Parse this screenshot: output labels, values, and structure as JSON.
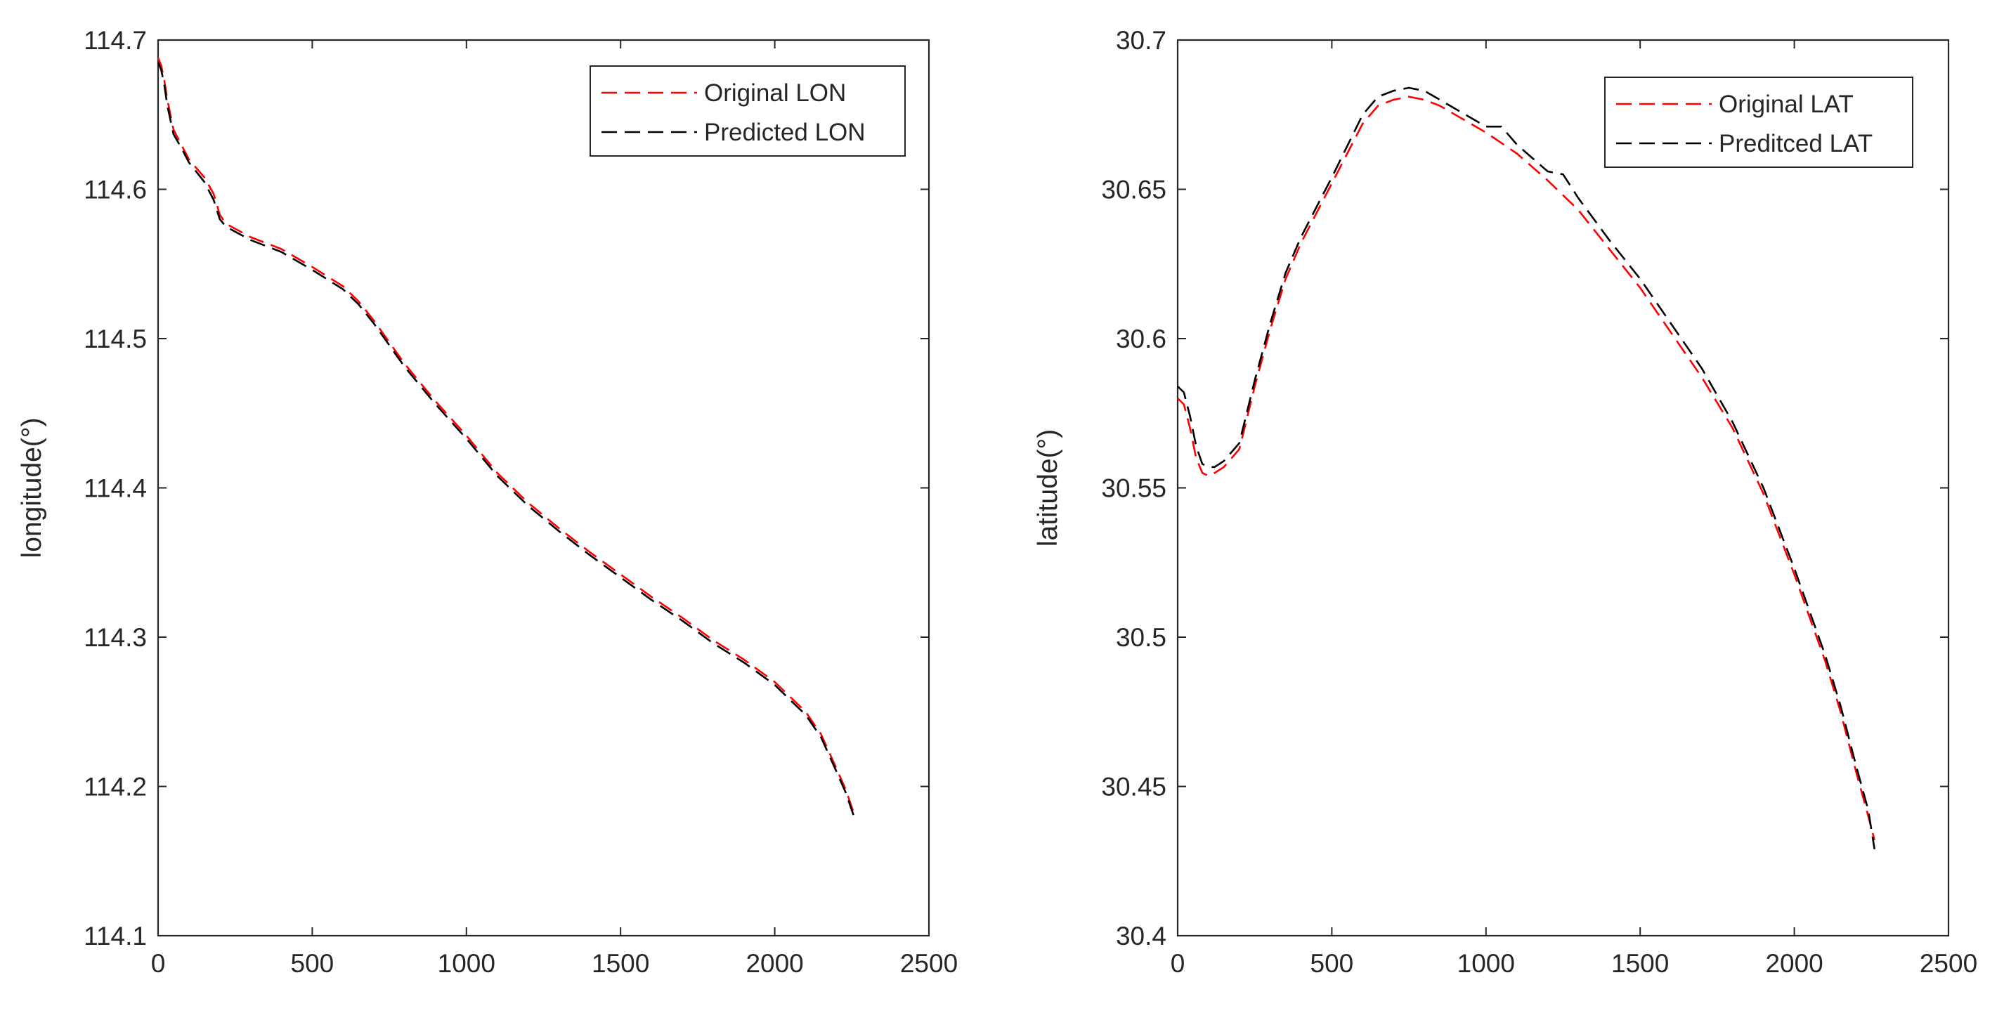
{
  "chart_data": [
    {
      "type": "line",
      "title": "",
      "xlabel": "",
      "ylabel": "longitude(°)",
      "xlim": [
        0,
        2500
      ],
      "ylim": [
        114.1,
        114.7
      ],
      "xticks": [
        0,
        500,
        1000,
        1500,
        2000,
        2500
      ],
      "yticks": [
        114.1,
        114.2,
        114.3,
        114.4,
        114.5,
        114.6,
        114.7
      ],
      "xtick_labels": [
        "0",
        "500",
        "1000",
        "1500",
        "2000",
        "2500"
      ],
      "ytick_labels": [
        "114.1",
        "114.2",
        "114.3",
        "114.4",
        "114.5",
        "114.6",
        "114.7"
      ],
      "grid": false,
      "legend_position": "top-right",
      "series": [
        {
          "name": "Original LON",
          "color": "#ff0000",
          "dash": "dashed",
          "x": [
            0,
            10,
            20,
            30,
            50,
            80,
            100,
            150,
            180,
            200,
            220,
            300,
            400,
            500,
            600,
            650,
            700,
            800,
            900,
            1000,
            1100,
            1200,
            1300,
            1400,
            1500,
            1600,
            1700,
            1800,
            1900,
            2000,
            2050,
            2100,
            2150,
            2200,
            2230,
            2260
          ],
          "y": [
            114.688,
            114.683,
            114.673,
            114.66,
            114.64,
            114.628,
            114.62,
            114.608,
            114.597,
            114.583,
            114.577,
            114.568,
            114.56,
            114.548,
            114.535,
            114.525,
            114.512,
            114.483,
            114.458,
            114.435,
            114.41,
            114.39,
            114.373,
            114.357,
            114.342,
            114.327,
            114.313,
            114.298,
            114.285,
            114.27,
            114.26,
            114.25,
            114.235,
            114.212,
            114.198,
            114.18
          ]
        },
        {
          "name": "Predicted LON",
          "color": "#000000",
          "dash": "dashed",
          "x": [
            0,
            10,
            20,
            30,
            50,
            80,
            100,
            150,
            180,
            200,
            220,
            300,
            400,
            500,
            600,
            650,
            700,
            800,
            900,
            1000,
            1100,
            1200,
            1300,
            1400,
            1500,
            1600,
            1700,
            1800,
            1900,
            2000,
            2050,
            2100,
            2150,
            2200,
            2230,
            2260
          ],
          "y": [
            114.685,
            114.68,
            114.67,
            114.656,
            114.637,
            114.626,
            114.618,
            114.605,
            114.593,
            114.58,
            114.575,
            114.566,
            114.558,
            114.546,
            114.533,
            114.523,
            114.51,
            114.481,
            114.456,
            114.433,
            114.408,
            114.388,
            114.371,
            114.355,
            114.34,
            114.325,
            114.311,
            114.296,
            114.283,
            114.268,
            114.258,
            114.248,
            114.233,
            114.21,
            114.196,
            114.178
          ]
        }
      ]
    },
    {
      "type": "line",
      "title": "",
      "xlabel": "",
      "ylabel": "latitude(°)",
      "xlim": [
        0,
        2500
      ],
      "ylim": [
        30.4,
        30.7
      ],
      "xticks": [
        0,
        500,
        1000,
        1500,
        2000,
        2500
      ],
      "yticks": [
        30.4,
        30.45,
        30.5,
        30.55,
        30.6,
        30.65,
        30.7
      ],
      "xtick_labels": [
        "0",
        "500",
        "1000",
        "1500",
        "2000",
        "2500"
      ],
      "ytick_labels": [
        "30.4",
        "30.45",
        "30.5",
        "30.55",
        "30.6",
        "30.65",
        "30.7"
      ],
      "grid": false,
      "legend_position": "top-right",
      "series": [
        {
          "name": "Original LAT",
          "color": "#ff0000",
          "dash": "dashed",
          "x": [
            0,
            20,
            40,
            60,
            80,
            100,
            120,
            150,
            200,
            250,
            300,
            350,
            400,
            500,
            600,
            650,
            700,
            750,
            800,
            850,
            900,
            1000,
            1100,
            1200,
            1300,
            1400,
            1500,
            1600,
            1700,
            1800,
            1900,
            2000,
            2100,
            2150,
            2200,
            2240,
            2260
          ],
          "y": [
            30.58,
            30.578,
            30.57,
            30.56,
            30.555,
            30.554,
            30.555,
            30.557,
            30.563,
            30.584,
            30.603,
            30.62,
            30.632,
            30.652,
            30.672,
            30.678,
            30.68,
            30.681,
            30.68,
            30.678,
            30.675,
            30.669,
            30.662,
            30.653,
            30.643,
            30.63,
            30.617,
            30.602,
            30.587,
            30.57,
            30.548,
            30.521,
            30.492,
            30.475,
            30.455,
            30.44,
            30.432
          ]
        },
        {
          "name": "Preditced LAT",
          "color": "#000000",
          "dash": "dashed",
          "x": [
            0,
            20,
            40,
            60,
            80,
            100,
            120,
            150,
            200,
            250,
            300,
            350,
            400,
            500,
            600,
            650,
            700,
            750,
            800,
            850,
            900,
            1000,
            1050,
            1100,
            1200,
            1250,
            1300,
            1400,
            1500,
            1600,
            1700,
            1800,
            1900,
            2000,
            2100,
            2150,
            2200,
            2240,
            2260
          ],
          "y": [
            30.584,
            30.582,
            30.574,
            30.564,
            30.558,
            30.557,
            30.557,
            30.559,
            30.565,
            30.586,
            30.605,
            30.622,
            30.634,
            30.654,
            30.675,
            30.681,
            30.683,
            30.684,
            30.683,
            30.68,
            30.677,
            30.671,
            30.671,
            30.665,
            30.656,
            30.655,
            30.647,
            30.633,
            30.62,
            30.605,
            30.59,
            30.572,
            30.55,
            30.523,
            30.494,
            30.477,
            30.457,
            30.442,
            30.429
          ]
        }
      ]
    }
  ]
}
